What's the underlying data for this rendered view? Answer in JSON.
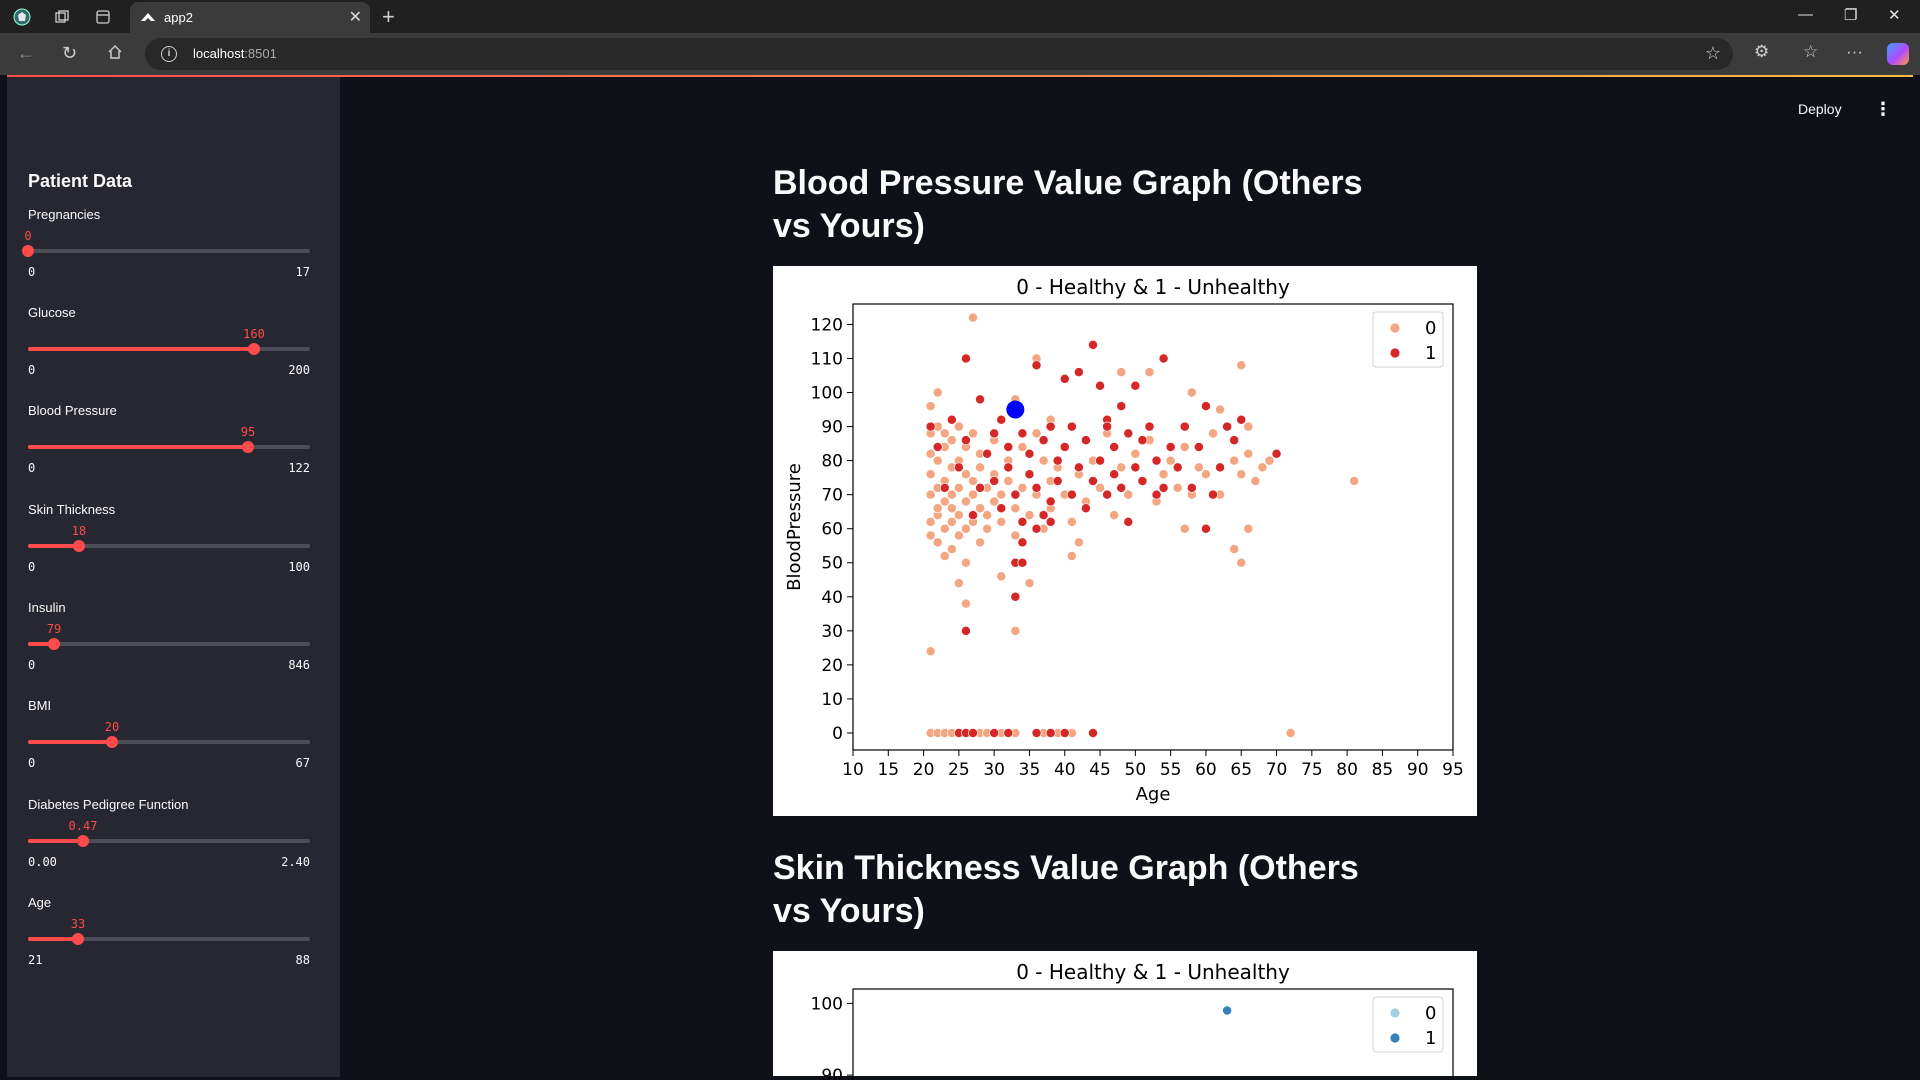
{
  "browser": {
    "tab_title": "app2",
    "url_host": "localhost",
    "url_port": ":8501"
  },
  "app": {
    "deploy_label": "Deploy",
    "accent_color": "#ff4b4b"
  },
  "sidebar": {
    "title": "Patient Data",
    "sliders": [
      {
        "label": "Pregnancies",
        "value": "0",
        "min": "0",
        "max": "17",
        "fraction": 0.0
      },
      {
        "label": "Glucose",
        "value": "160",
        "min": "0",
        "max": "200",
        "fraction": 0.8
      },
      {
        "label": "Blood Pressure",
        "value": "95",
        "min": "0",
        "max": "122",
        "fraction": 0.779
      },
      {
        "label": "Skin Thickness",
        "value": "18",
        "min": "0",
        "max": "100",
        "fraction": 0.18
      },
      {
        "label": "Insulin",
        "value": "79",
        "min": "0",
        "max": "846",
        "fraction": 0.093
      },
      {
        "label": "BMI",
        "value": "20",
        "min": "0",
        "max": "67",
        "fraction": 0.299
      },
      {
        "label": "Diabetes Pedigree Function",
        "value": "0.47",
        "min": "0.00",
        "max": "2.40",
        "fraction": 0.196
      },
      {
        "label": "Age",
        "value": "33",
        "min": "21",
        "max": "88",
        "fraction": 0.179
      }
    ]
  },
  "main": {
    "bp_heading": "Blood Pressure Value Graph (Others vs Yours)",
    "st_heading": "Skin Thickness Value Graph (Others vs Yours)"
  },
  "chart_data": [
    {
      "type": "scatter",
      "title": "0 - Healthy & 1 - Unhealthy",
      "xlabel": "Age",
      "ylabel": "BloodPressure",
      "xlim": [
        10,
        95
      ],
      "ylim": [
        -5,
        126
      ],
      "xticks": [
        10,
        15,
        20,
        25,
        30,
        35,
        40,
        45,
        50,
        55,
        60,
        65,
        70,
        75,
        80,
        85,
        90,
        95
      ],
      "yticks": [
        0,
        10,
        20,
        30,
        40,
        50,
        60,
        70,
        80,
        90,
        100,
        110,
        120
      ],
      "legend": {
        "title": "",
        "placement": "top-right",
        "entries": [
          "0",
          "1"
        ]
      },
      "series": [
        {
          "name": "0",
          "color": "#f4a582",
          "points": [
            [
              21,
              62
            ],
            [
              21,
              70
            ],
            [
              21,
              76
            ],
            [
              21,
              82
            ],
            [
              21,
              88
            ],
            [
              21,
              58
            ],
            [
              22,
              64
            ],
            [
              22,
              72
            ],
            [
              22,
              80
            ],
            [
              22,
              90
            ],
            [
              22,
              66
            ],
            [
              22,
              56
            ],
            [
              23,
              68
            ],
            [
              23,
              74
            ],
            [
              23,
              84
            ],
            [
              23,
              60
            ],
            [
              23,
              52
            ],
            [
              23,
              88
            ],
            [
              24,
              66
            ],
            [
              24,
              78
            ],
            [
              24,
              70
            ],
            [
              24,
              62
            ],
            [
              24,
              86
            ],
            [
              24,
              54
            ],
            [
              25,
              64
            ],
            [
              25,
              72
            ],
            [
              25,
              80
            ],
            [
              25,
              58
            ],
            [
              25,
              90
            ],
            [
              26,
              68
            ],
            [
              26,
              76
            ],
            [
              26,
              84
            ],
            [
              26,
              60
            ],
            [
              26,
              50
            ],
            [
              27,
              70
            ],
            [
              27,
              62
            ],
            [
              27,
              88
            ],
            [
              27,
              74
            ],
            [
              28,
              66
            ],
            [
              28,
              78
            ],
            [
              28,
              56
            ],
            [
              28,
              82
            ],
            [
              29,
              64
            ],
            [
              29,
              72
            ],
            [
              29,
              60
            ],
            [
              30,
              68
            ],
            [
              30,
              76
            ],
            [
              30,
              86
            ],
            [
              31,
              70
            ],
            [
              31,
              62
            ],
            [
              32,
              74
            ],
            [
              32,
              80
            ],
            [
              33,
              66
            ],
            [
              33,
              58
            ],
            [
              34,
              72
            ],
            [
              34,
              84
            ],
            [
              35,
              64
            ],
            [
              35,
              76
            ],
            [
              36,
              70
            ],
            [
              36,
              88
            ],
            [
              37,
              60
            ],
            [
              37,
              80
            ],
            [
              38,
              74
            ],
            [
              38,
              66
            ],
            [
              39,
              78
            ],
            [
              40,
              70
            ],
            [
              40,
              84
            ],
            [
              41,
              62
            ],
            [
              42,
              76
            ],
            [
              43,
              68
            ],
            [
              44,
              80
            ],
            [
              45,
              72
            ],
            [
              46,
              88
            ],
            [
              47,
              64
            ],
            [
              48,
              78
            ],
            [
              49,
              70
            ],
            [
              50,
              82
            ],
            [
              51,
              74
            ],
            [
              52,
              86
            ],
            [
              53,
              68
            ],
            [
              54,
              76
            ],
            [
              55,
              80
            ],
            [
              56,
              72
            ],
            [
              57,
              84
            ],
            [
              58,
              70
            ],
            [
              59,
              78
            ],
            [
              60,
              76
            ],
            [
              61,
              88
            ],
            [
              62,
              70
            ],
            [
              64,
              80
            ],
            [
              65,
              76
            ],
            [
              66,
              82
            ],
            [
              67,
              74
            ],
            [
              68,
              78
            ],
            [
              69,
              80
            ],
            [
              70,
              82
            ],
            [
              22,
              100
            ],
            [
              21,
              96
            ],
            [
              27,
              122
            ],
            [
              36,
              110
            ],
            [
              33,
              98
            ],
            [
              38,
              92
            ],
            [
              48,
              106
            ],
            [
              52,
              106
            ],
            [
              58,
              100
            ],
            [
              65,
              108
            ],
            [
              66,
              90
            ],
            [
              62,
              95
            ],
            [
              21,
              24
            ],
            [
              25,
              44
            ],
            [
              26,
              38
            ],
            [
              33,
              30
            ],
            [
              31,
              46
            ],
            [
              35,
              44
            ],
            [
              41,
              52
            ],
            [
              42,
              56
            ],
            [
              57,
              60
            ],
            [
              60,
              60
            ],
            [
              64,
              54
            ],
            [
              66,
              60
            ],
            [
              65,
              50
            ],
            [
              81,
              74
            ],
            [
              21,
              0
            ],
            [
              22,
              0
            ],
            [
              23,
              0
            ],
            [
              24,
              0
            ],
            [
              25,
              0
            ],
            [
              26,
              0
            ],
            [
              27,
              0
            ],
            [
              28,
              0
            ],
            [
              29,
              0
            ],
            [
              31,
              0
            ],
            [
              33,
              0
            ],
            [
              37,
              0
            ],
            [
              39,
              0
            ],
            [
              41,
              0
            ],
            [
              72,
              0
            ]
          ]
        },
        {
          "name": "1",
          "color": "#d62728",
          "points": [
            [
              21,
              90
            ],
            [
              22,
              84
            ],
            [
              23,
              72
            ],
            [
              24,
              92
            ],
            [
              25,
              78
            ],
            [
              26,
              110
            ],
            [
              26,
              86
            ],
            [
              27,
              64
            ],
            [
              28,
              98
            ],
            [
              28,
              72
            ],
            [
              29,
              82
            ],
            [
              30,
              74
            ],
            [
              30,
              88
            ],
            [
              31,
              92
            ],
            [
              31,
              66
            ],
            [
              32,
              78
            ],
            [
              32,
              84
            ],
            [
              33,
              96
            ],
            [
              33,
              70
            ],
            [
              34,
              88
            ],
            [
              34,
              62
            ],
            [
              35,
              76
            ],
            [
              35,
              82
            ],
            [
              36,
              72
            ],
            [
              36,
              108
            ],
            [
              37,
              86
            ],
            [
              37,
              64
            ],
            [
              38,
              90
            ],
            [
              38,
              68
            ],
            [
              39,
              80
            ],
            [
              39,
              74
            ],
            [
              40,
              104
            ],
            [
              40,
              84
            ],
            [
              41,
              70
            ],
            [
              41,
              90
            ],
            [
              42,
              78
            ],
            [
              42,
              106
            ],
            [
              43,
              66
            ],
            [
              43,
              86
            ],
            [
              44,
              114
            ],
            [
              44,
              74
            ],
            [
              45,
              102
            ],
            [
              45,
              80
            ],
            [
              46,
              70
            ],
            [
              46,
              92
            ],
            [
              47,
              84
            ],
            [
              47,
              76
            ],
            [
              48,
              96
            ],
            [
              48,
              72
            ],
            [
              49,
              88
            ],
            [
              50,
              78
            ],
            [
              50,
              102
            ],
            [
              51,
              86
            ],
            [
              51,
              74
            ],
            [
              52,
              90
            ],
            [
              53,
              80
            ],
            [
              54,
              110
            ],
            [
              54,
              72
            ],
            [
              55,
              84
            ],
            [
              56,
              78
            ],
            [
              57,
              90
            ],
            [
              58,
              72
            ],
            [
              59,
              84
            ],
            [
              60,
              96
            ],
            [
              61,
              70
            ],
            [
              62,
              78
            ],
            [
              63,
              90
            ],
            [
              64,
              86
            ],
            [
              65,
              92
            ],
            [
              70,
              82
            ],
            [
              26,
              30
            ],
            [
              33,
              40
            ],
            [
              33,
              50
            ],
            [
              34,
              50
            ],
            [
              34,
              56
            ],
            [
              36,
              60
            ],
            [
              38,
              62
            ],
            [
              46,
              90
            ],
            [
              49,
              62
            ],
            [
              53,
              70
            ],
            [
              60,
              60
            ],
            [
              25,
              0
            ],
            [
              26,
              0
            ],
            [
              27,
              0
            ],
            [
              30,
              0
            ],
            [
              32,
              0
            ],
            [
              36,
              0
            ],
            [
              38,
              0
            ],
            [
              40,
              0
            ],
            [
              44,
              0
            ]
          ]
        },
        {
          "name": "Yours",
          "color": "#0000ff",
          "points": [
            [
              33,
              95
            ]
          ]
        }
      ]
    },
    {
      "type": "scatter",
      "title": "0 - Healthy & 1 - Unhealthy",
      "ylim": [
        85,
        102
      ],
      "yticks": [
        90,
        100
      ],
      "legend": {
        "title": "",
        "placement": "top-right",
        "entries": [
          "0",
          "1"
        ]
      },
      "series": [
        {
          "name": "0",
          "color": "#a6cee3",
          "points": []
        },
        {
          "name": "1",
          "color": "#3182bd",
          "points": [
            [
              63,
              99
            ]
          ]
        }
      ]
    }
  ]
}
